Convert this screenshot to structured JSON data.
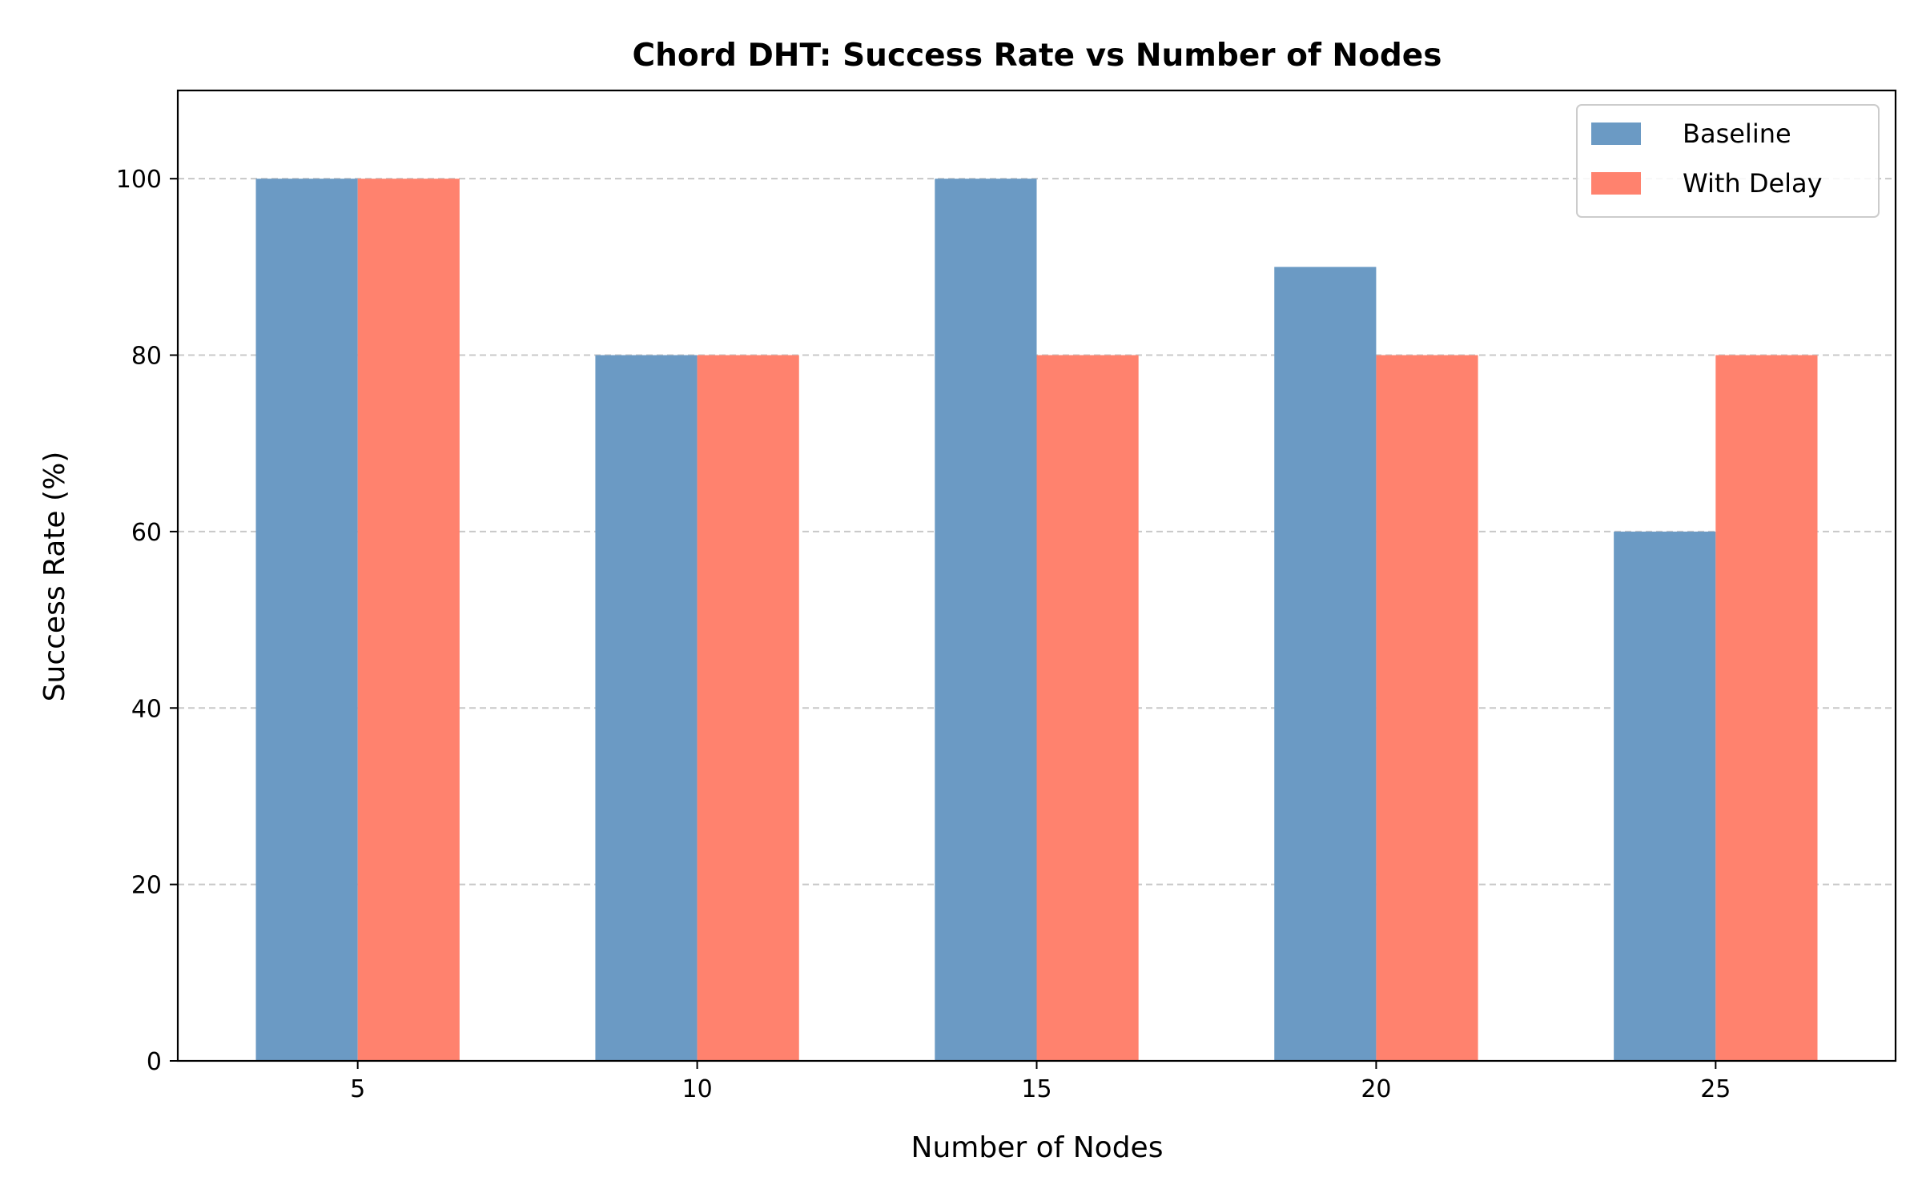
{
  "chart_data": {
    "type": "bar",
    "title": "Chord DHT: Success Rate vs Number of Nodes",
    "xlabel": "Number of Nodes",
    "ylabel": "Success Rate (%)",
    "categories": [
      "5",
      "10",
      "15",
      "20",
      "25"
    ],
    "x": [
      5,
      10,
      15,
      20,
      25
    ],
    "series": [
      {
        "name": "Baseline",
        "color": "#6b9ac4",
        "values": [
          100,
          80,
          100,
          90,
          60
        ]
      },
      {
        "name": "With Delay",
        "color": "#ff826e",
        "values": [
          100,
          80,
          80,
          80,
          80
        ]
      }
    ],
    "xlim": [
      2.35,
      27.65
    ],
    "ylim": [
      0,
      110
    ],
    "yticks": [
      0,
      20,
      40,
      60,
      80,
      100
    ],
    "bar_width": 1.5,
    "grid": {
      "axis": "y",
      "style": "dashed"
    },
    "legend": {
      "position": "top-right"
    }
  }
}
